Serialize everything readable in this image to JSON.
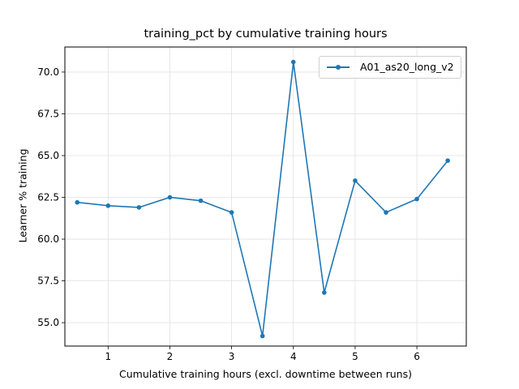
{
  "chart_data": {
    "type": "line",
    "title": "training_pct by cumulative training hours",
    "xlabel": "Cumulative training hours (excl. downtime between runs)",
    "ylabel": "Learner % training",
    "xlim": [
      0.3,
      6.8
    ],
    "ylim": [
      53.6,
      71.5
    ],
    "xticks": [
      1,
      2,
      3,
      4,
      5,
      6
    ],
    "yticks": [
      55.0,
      57.5,
      60.0,
      62.5,
      65.0,
      67.5,
      70.0
    ],
    "ytick_labels": [
      "55.0",
      "57.5",
      "60.0",
      "62.5",
      "65.0",
      "67.5",
      "70.0"
    ],
    "grid": true,
    "legend_position": "upper right",
    "x": [
      0.5,
      1.0,
      1.5,
      2.0,
      2.5,
      3.0,
      3.5,
      4.0,
      4.5,
      5.0,
      5.5,
      6.0,
      6.5
    ],
    "series": [
      {
        "name": "A01_as20_long_v2",
        "color": "#1f77b4",
        "marker": "circle",
        "values": [
          62.2,
          62.0,
          61.9,
          62.5,
          62.3,
          61.6,
          54.2,
          70.6,
          56.8,
          63.5,
          61.6,
          62.4,
          64.7
        ]
      }
    ]
  }
}
